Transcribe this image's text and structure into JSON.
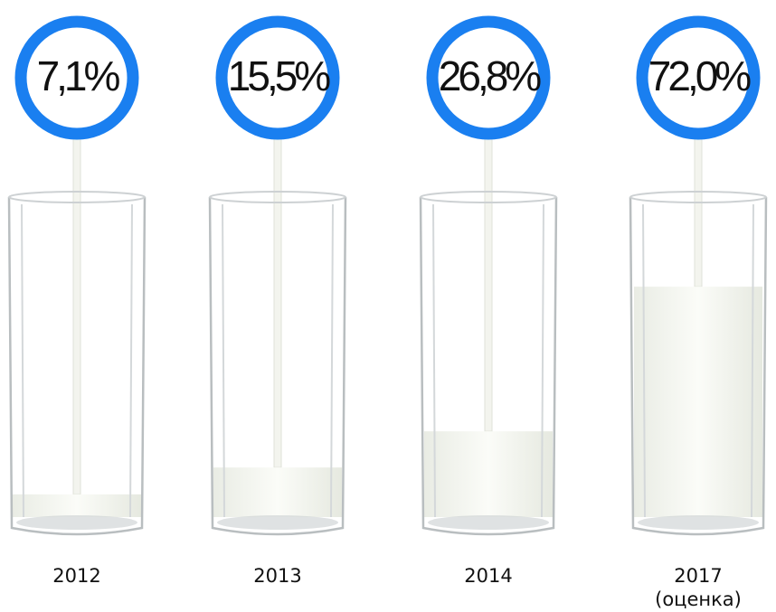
{
  "chart_data": {
    "type": "bar",
    "categories": [
      "2012",
      "2013",
      "2014",
      "2017"
    ],
    "annotation": "(оценка)",
    "values": [
      7.1,
      15.5,
      26.8,
      72.0
    ],
    "value_labels": [
      "7,1%",
      "15,5%",
      "26,8%",
      "72,0%"
    ],
    "ylim": [
      0,
      100
    ],
    "color": "#1a7ff0"
  }
}
